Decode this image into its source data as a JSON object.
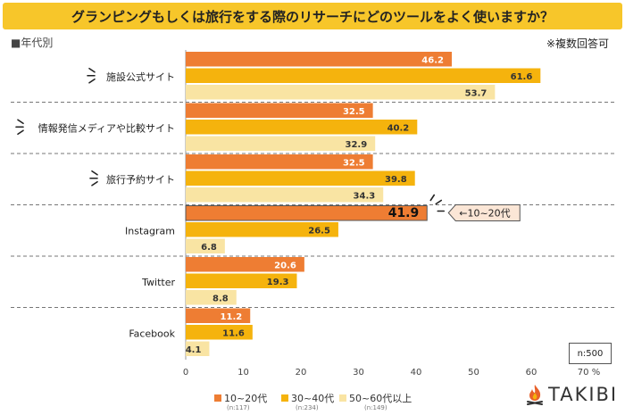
{
  "title": "グランピングもしくは旅行をする際のリサーチにどのツールをよく使いますか？",
  "group_label": "■年代別",
  "multi_note": "※複数回答可",
  "sample_note": "n:500",
  "brand": "TAKIBI",
  "callout": "←10~20代",
  "colors": {
    "s1": "#ee7d33",
    "s2": "#f5b30d",
    "s3": "#f9e4a3",
    "title_bg": "#f7c62a",
    "brand": "#e8612a"
  },
  "legend": [
    {
      "name": "10~20代",
      "n": "(n:117)"
    },
    {
      "name": "30~40代",
      "n": "(n:234)"
    },
    {
      "name": "50~60代以上",
      "n": "(n:149)"
    }
  ],
  "chart_data": {
    "type": "bar",
    "orientation": "horizontal",
    "categories": [
      "施設公式サイト",
      "情報発信メディアや比較サイト",
      "旅行予約サイト",
      "Instagram",
      "Twitter",
      "Facebook"
    ],
    "series": [
      {
        "name": "10~20代",
        "values": [
          46.2,
          32.5,
          32.5,
          41.9,
          20.6,
          11.2
        ]
      },
      {
        "name": "30~40代",
        "values": [
          61.6,
          40.2,
          39.8,
          26.5,
          19.3,
          11.6
        ]
      },
      {
        "name": "50~60代以上",
        "values": [
          53.7,
          32.9,
          34.3,
          6.8,
          8.8,
          4.1
        ]
      }
    ],
    "xlim": [
      0,
      70
    ],
    "xticks": [
      0,
      10,
      20,
      30,
      40,
      50,
      60,
      70
    ],
    "xunit": "%",
    "highlight": {
      "category": "Instagram",
      "series": "10~20代"
    }
  }
}
